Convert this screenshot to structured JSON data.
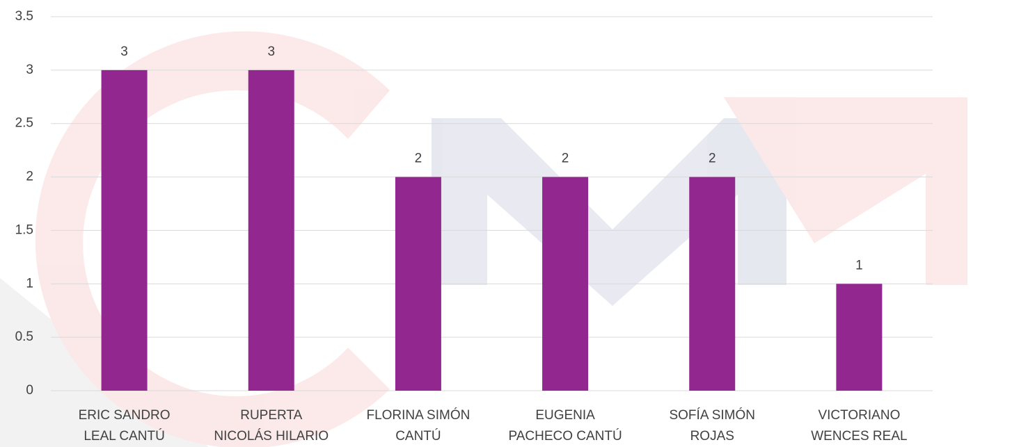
{
  "chart_data": {
    "type": "bar",
    "categories": [
      "ERIC SANDRO\nLEAL CANTÚ",
      "RUPERTA\nNICOLÁS HILARIO",
      "FLORINA SIMÓN\nCANTÚ",
      "EUGENIA\nPACHECO CANTÚ",
      "SOFÍA SIMÓN\nROJAS",
      "VICTORIANO\nWENCES REAL"
    ],
    "values": [
      3,
      3,
      2,
      2,
      2,
      1
    ],
    "color": "#92278f",
    "ylim": [
      0,
      3.5
    ],
    "yticks": [
      0,
      0.5,
      1,
      1.5,
      2,
      2.5,
      3,
      3.5
    ],
    "grid": true
  }
}
